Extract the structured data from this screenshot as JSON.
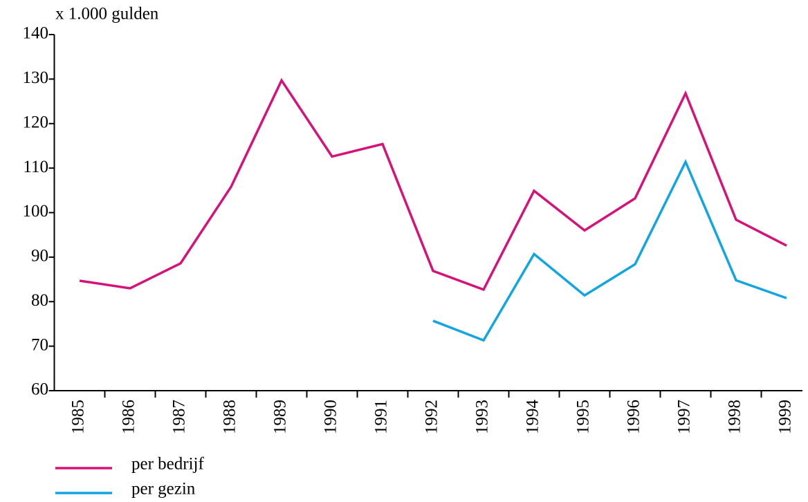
{
  "chart_data": {
    "type": "line",
    "y_label": "x 1.000 gulden",
    "categories": [
      "1985",
      "1986",
      "1987",
      "1988",
      "1989",
      "1990",
      "1991",
      "1992",
      "1993",
      "1994",
      "1995",
      "1996",
      "1997",
      "1998",
      "1999"
    ],
    "series": [
      {
        "name": "per bedrijf",
        "color": "#d6127a",
        "values": [
          84.7,
          83.0,
          88.6,
          105.8,
          129.7,
          112.6,
          115.4,
          86.9,
          82.7,
          104.9,
          96.0,
          103.2,
          126.8,
          98.4,
          92.6
        ]
      },
      {
        "name": "per gezin",
        "color": "#12a6e0",
        "values": [
          null,
          null,
          null,
          null,
          null,
          null,
          null,
          75.7,
          71.3,
          90.7,
          81.4,
          88.4,
          111.4,
          84.8,
          80.8
        ]
      }
    ],
    "ylim": [
      60,
      140
    ],
    "yticks": [
      60,
      70,
      80,
      90,
      100,
      110,
      120,
      130,
      140
    ]
  }
}
